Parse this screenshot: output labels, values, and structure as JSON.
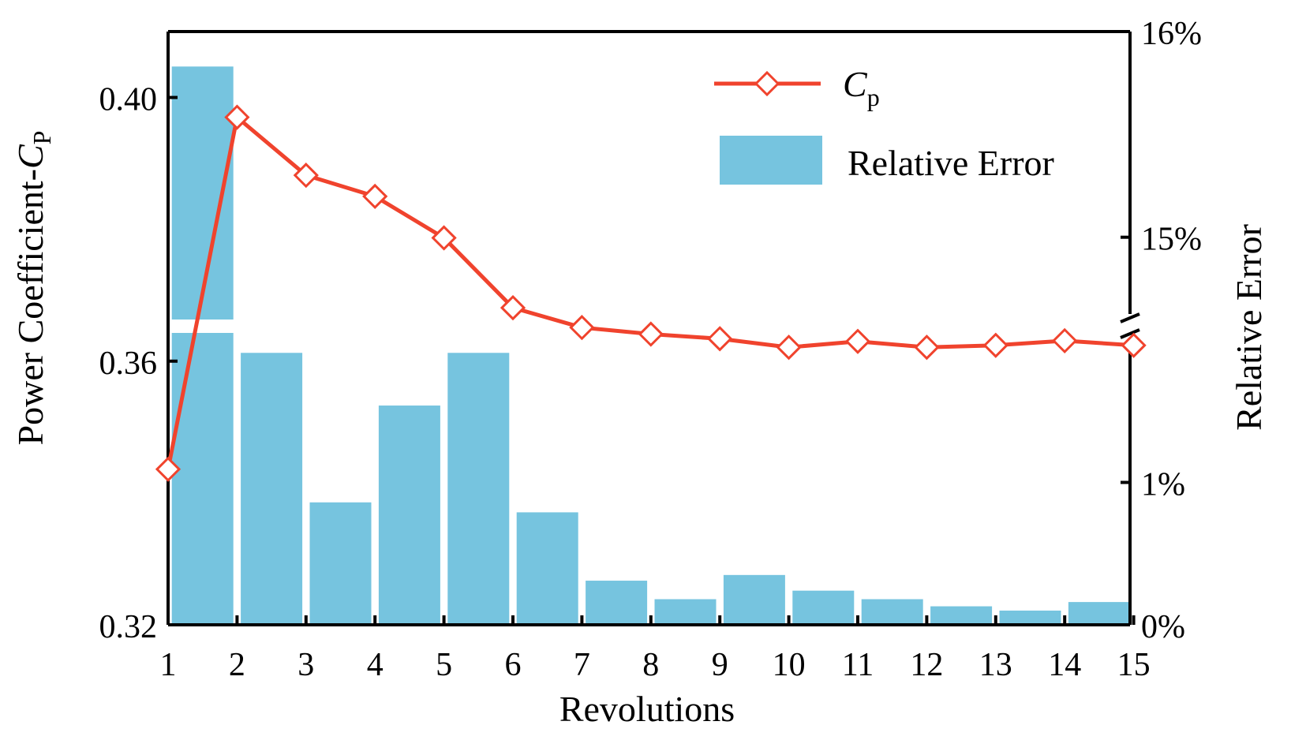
{
  "chart_data": {
    "type": "bar+line",
    "xlabel": "Revolutions",
    "ylabel_left_prefix": "Power Coefficient-",
    "ylabel_left_symbol": "C",
    "ylabel_left_sub": "P",
    "ylabel_right": "Relative Error",
    "x": [
      1,
      2,
      3,
      4,
      5,
      6,
      7,
      8,
      9,
      10,
      11,
      12,
      13,
      14,
      15
    ],
    "x_tick_labels": [
      "1",
      "2",
      "3",
      "4",
      "5",
      "6",
      "7",
      "8",
      "9",
      "10",
      "11",
      "12",
      "13",
      "14",
      "15"
    ],
    "left_axis": {
      "ylim": [
        0.32,
        0.41
      ],
      "ticks": [
        0.32,
        0.36,
        0.4
      ],
      "tick_labels": [
        "0.32",
        "0.36",
        "0.40"
      ]
    },
    "right_axis": {
      "broken": true,
      "lower_range_percent": [
        0,
        2.05
      ],
      "upper_range_percent": [
        14.6,
        16.0
      ],
      "ticks_percent": [
        0,
        1,
        15,
        16
      ],
      "tick_labels": [
        "0%",
        "1%",
        "15%",
        "16%"
      ]
    },
    "series": [
      {
        "name": "C",
        "name_sub": "p",
        "kind": "line",
        "axis": "left",
        "color": "#f0432d",
        "marker": "diamond-open",
        "values": [
          0.3436,
          0.397,
          0.3882,
          0.385,
          0.3787,
          0.3681,
          0.3651,
          0.3641,
          0.3634,
          0.3621,
          0.363,
          0.3621,
          0.3624,
          0.3631,
          0.3624
        ]
      },
      {
        "name": "Relative Error",
        "kind": "bar",
        "axis": "right",
        "color": "#76c4df",
        "values_percent": [
          15.83,
          1.91,
          0.86,
          1.54,
          1.91,
          0.79,
          0.31,
          0.18,
          0.35,
          0.24,
          0.18,
          0.13,
          0.1,
          0.16
        ]
      }
    ],
    "legend": {
      "position": "top-right"
    }
  }
}
